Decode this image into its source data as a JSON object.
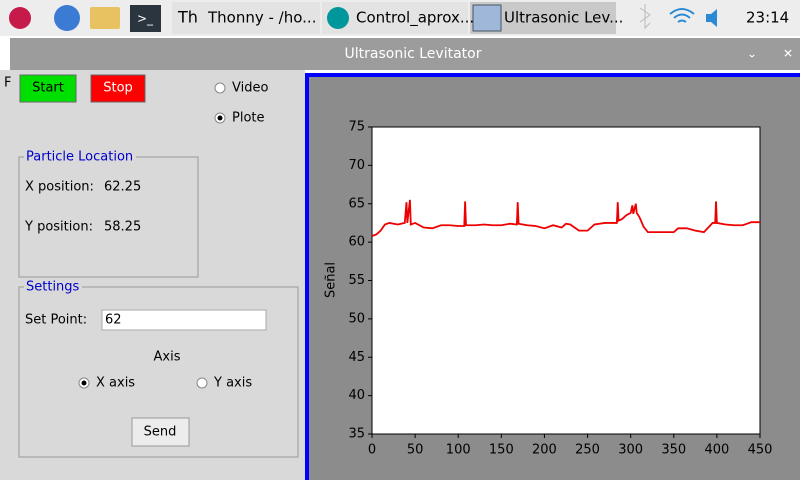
{
  "taskbar": {
    "apps": [
      "Thonny - /ho...",
      "Control_aprox...",
      "Ultrasonic Lev..."
    ],
    "clock": "23:14"
  },
  "window": {
    "title": "Ultrasonic Levitator",
    "hidden_label": "F"
  },
  "controls": {
    "start": "Start",
    "stop": "Stop",
    "view": [
      {
        "label": "Video",
        "checked": false
      },
      {
        "label": "Plote",
        "checked": true
      }
    ]
  },
  "particle_location": {
    "title": "Particle Location",
    "rows": [
      {
        "label": "X position:",
        "value": "62.25"
      },
      {
        "label": "Y position:",
        "value": "58.25"
      }
    ]
  },
  "settings": {
    "title": "Settings",
    "set_point_label": "Set Point:",
    "set_point_value": "62",
    "axis_title": "Axis",
    "axis": [
      {
        "label": "X axis",
        "checked": true
      },
      {
        "label": "Y axis",
        "checked": false
      }
    ],
    "send": "Send"
  },
  "chart_data": {
    "type": "line",
    "ylabel": "Señal",
    "x": [
      0,
      5,
      10,
      15,
      20,
      30,
      38,
      40,
      41,
      44,
      45,
      50,
      55,
      60,
      70,
      80,
      90,
      100,
      107,
      108,
      109,
      120,
      130,
      140,
      150,
      160,
      168,
      169,
      170,
      180,
      190,
      200,
      210,
      220,
      225,
      230,
      240,
      250,
      258,
      270,
      284,
      285,
      286,
      290,
      295,
      300,
      302,
      303,
      306,
      307,
      310,
      315,
      320,
      340,
      350,
      355,
      365,
      375,
      385,
      395,
      398,
      399,
      400,
      410,
      420,
      430,
      440,
      450
    ],
    "series": [
      {
        "color": "#ee0000",
        "values": [
          60.8,
          61.0,
          61.5,
          62.3,
          62.5,
          62.3,
          62.5,
          65.2,
          62.5,
          65.5,
          62.3,
          62.5,
          62.2,
          61.9,
          61.8,
          62.2,
          62.2,
          62.1,
          62.1,
          65.3,
          62.2,
          62.2,
          62.3,
          62.2,
          62.2,
          62.4,
          62.3,
          65.2,
          62.4,
          62.2,
          62.1,
          61.8,
          62.2,
          61.9,
          62.4,
          62.3,
          61.5,
          61.5,
          62.3,
          62.5,
          62.5,
          65.2,
          62.8,
          63.0,
          63.5,
          63.8,
          64.8,
          63.7,
          65.0,
          63.8,
          63.3,
          62.0,
          61.3,
          61.3,
          61.3,
          61.8,
          61.8,
          61.5,
          61.3,
          62.5,
          62.5,
          65.3,
          62.5,
          62.3,
          62.2,
          62.2,
          62.6,
          62.6
        ]
      }
    ],
    "xlim": [
      0,
      450
    ],
    "xticks": [
      0,
      50,
      100,
      150,
      200,
      250,
      300,
      350,
      400,
      450
    ],
    "ylim": [
      35,
      75
    ],
    "yticks": [
      35,
      40,
      45,
      50,
      55,
      60,
      65,
      70,
      75
    ]
  }
}
